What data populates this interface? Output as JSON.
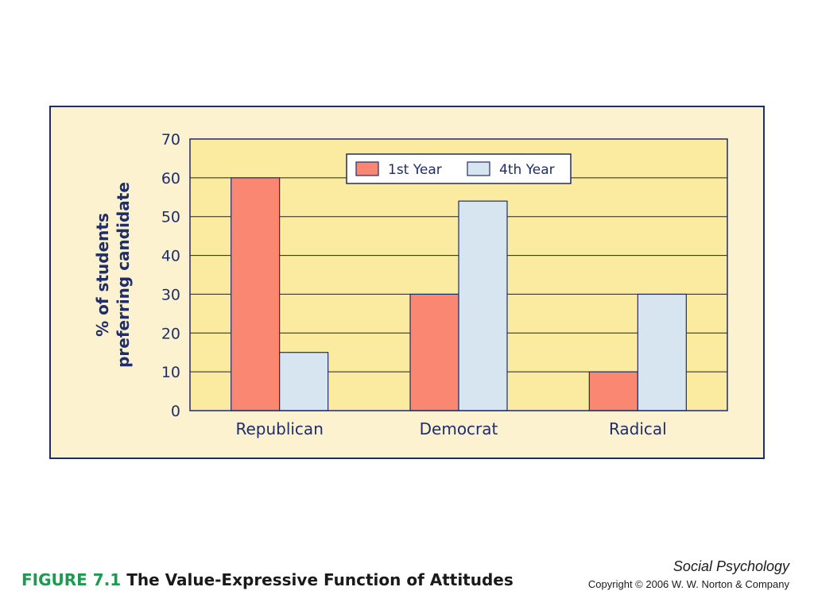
{
  "chart_data": {
    "type": "bar",
    "categories": [
      "Republican",
      "Democrat",
      "Radical"
    ],
    "series": [
      {
        "name": "1st Year",
        "values": [
          60,
          30,
          10
        ]
      },
      {
        "name": "4th Year",
        "values": [
          15,
          54,
          30
        ]
      }
    ],
    "ylabel": [
      "% of students",
      "preferring candidate"
    ],
    "yticks": [
      0,
      10,
      20,
      30,
      40,
      50,
      60,
      70
    ],
    "ylim": [
      0,
      70
    ],
    "grid": true,
    "legend": "top-center",
    "colors": {
      "1st Year": "#f98771",
      "4th Year": "#d6e5ef",
      "plot_bg": "#faeba0",
      "axis": "#1f2d6b"
    }
  },
  "caption": {
    "figure_number": "FIGURE 7.1",
    "title": "The Value-Expressive Function of Attitudes"
  },
  "credit": {
    "book": "Social Psychology",
    "copyright": "Copyright © 2006 W. W. Norton & Company"
  }
}
